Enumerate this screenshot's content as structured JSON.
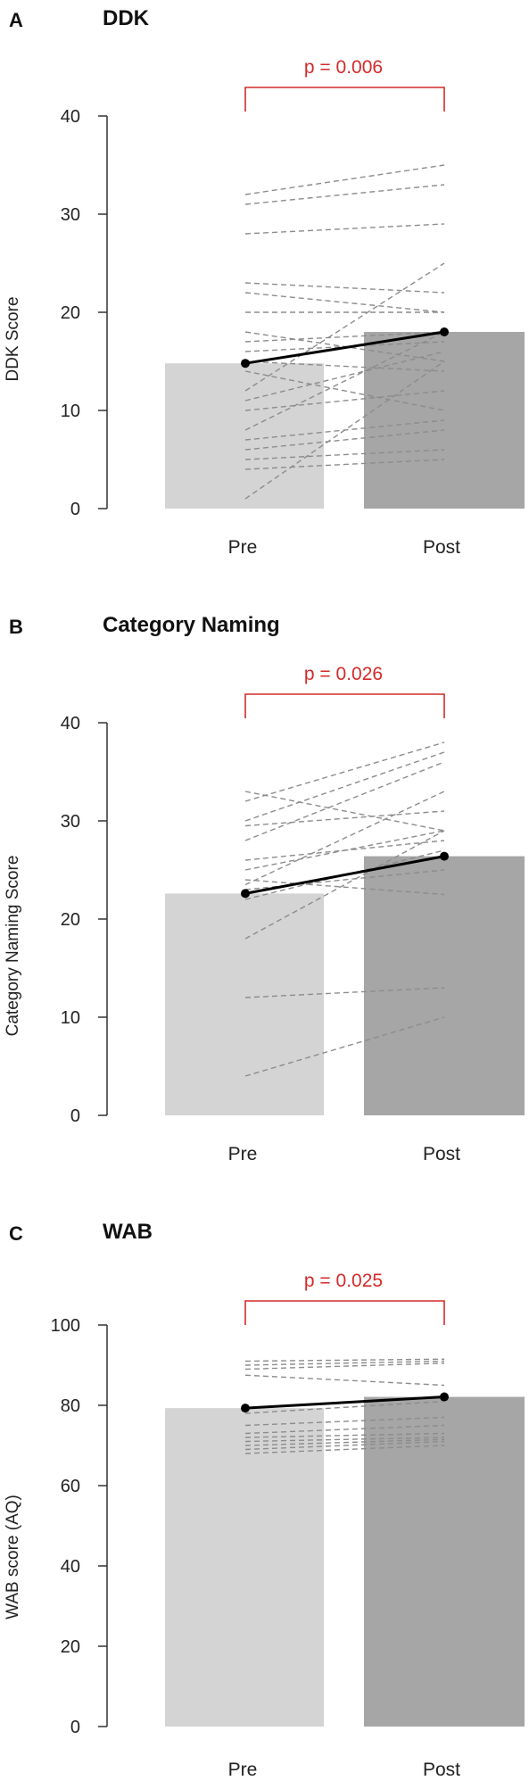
{
  "colors": {
    "pre_bar": "#d4d4d4",
    "post_bar": "#a6a6a6",
    "individual_line": "#8c8c8c",
    "mean_line": "#000000",
    "significance": "#d42a2a",
    "axis": "#333333"
  },
  "chart_data": [
    {
      "type": "bar",
      "panel_letter": "A",
      "title": "DDK",
      "ylabel": "DDK Score",
      "xlabel": "",
      "categories": [
        "Pre",
        "Post"
      ],
      "values": [
        14.8,
        18.0
      ],
      "ylim": [
        0,
        40
      ],
      "yticks": [
        0,
        10,
        20,
        30,
        40
      ],
      "significance": "p = 0.006",
      "mean_line": {
        "values": [
          14.8,
          18.0
        ]
      },
      "individual_lines": [
        [
          32,
          35
        ],
        [
          31,
          33
        ],
        [
          28,
          29
        ],
        [
          23,
          22
        ],
        [
          22,
          20
        ],
        [
          20,
          20
        ],
        [
          18,
          15
        ],
        [
          17,
          18
        ],
        [
          16,
          17
        ],
        [
          15,
          14
        ],
        [
          14,
          10
        ],
        [
          12,
          25
        ],
        [
          11,
          16
        ],
        [
          10,
          12
        ],
        [
          8,
          18
        ],
        [
          7,
          9
        ],
        [
          6,
          8
        ],
        [
          5,
          6
        ],
        [
          4,
          5
        ],
        [
          1,
          15
        ]
      ],
      "grid": false,
      "legend": "none"
    },
    {
      "type": "bar",
      "panel_letter": "B",
      "title": "Category Naming",
      "ylabel": "Category Naming Score",
      "xlabel": "",
      "categories": [
        "Pre",
        "Post"
      ],
      "values": [
        22.6,
        26.4
      ],
      "ylim": [
        0,
        40
      ],
      "yticks": [
        0,
        10,
        20,
        30,
        40
      ],
      "significance": "p = 0.026",
      "mean_line": {
        "values": [
          22.6,
          26.4
        ]
      },
      "individual_lines": [
        [
          33,
          29
        ],
        [
          32,
          38
        ],
        [
          30,
          37
        ],
        [
          29.5,
          31
        ],
        [
          28,
          36
        ],
        [
          26,
          28
        ],
        [
          25,
          29
        ],
        [
          24,
          22.5
        ],
        [
          23.5,
          33
        ],
        [
          23,
          25
        ],
        [
          22,
          27
        ],
        [
          18,
          29
        ],
        [
          12,
          13
        ],
        [
          4,
          10
        ]
      ],
      "grid": false,
      "legend": "none"
    },
    {
      "type": "bar",
      "panel_letter": "C",
      "title": "WAB",
      "ylabel": "WAB score (AQ)",
      "xlabel": "",
      "categories": [
        "Pre",
        "Post"
      ],
      "values": [
        79.3,
        82.1
      ],
      "ylim": [
        0,
        100
      ],
      "yticks": [
        0,
        20,
        40,
        60,
        80,
        100
      ],
      "significance": "p = 0.025",
      "mean_line": {
        "values": [
          79.3,
          82.1
        ]
      },
      "individual_lines": [
        [
          91,
          91.5
        ],
        [
          90,
          91
        ],
        [
          89,
          90.5
        ],
        [
          87.5,
          85
        ],
        [
          78,
          81
        ],
        [
          75,
          77
        ],
        [
          73,
          75
        ],
        [
          72,
          73
        ],
        [
          71,
          72
        ],
        [
          70,
          71.5
        ],
        [
          69,
          71
        ],
        [
          68,
          70
        ]
      ],
      "grid": false,
      "legend": "none"
    }
  ]
}
